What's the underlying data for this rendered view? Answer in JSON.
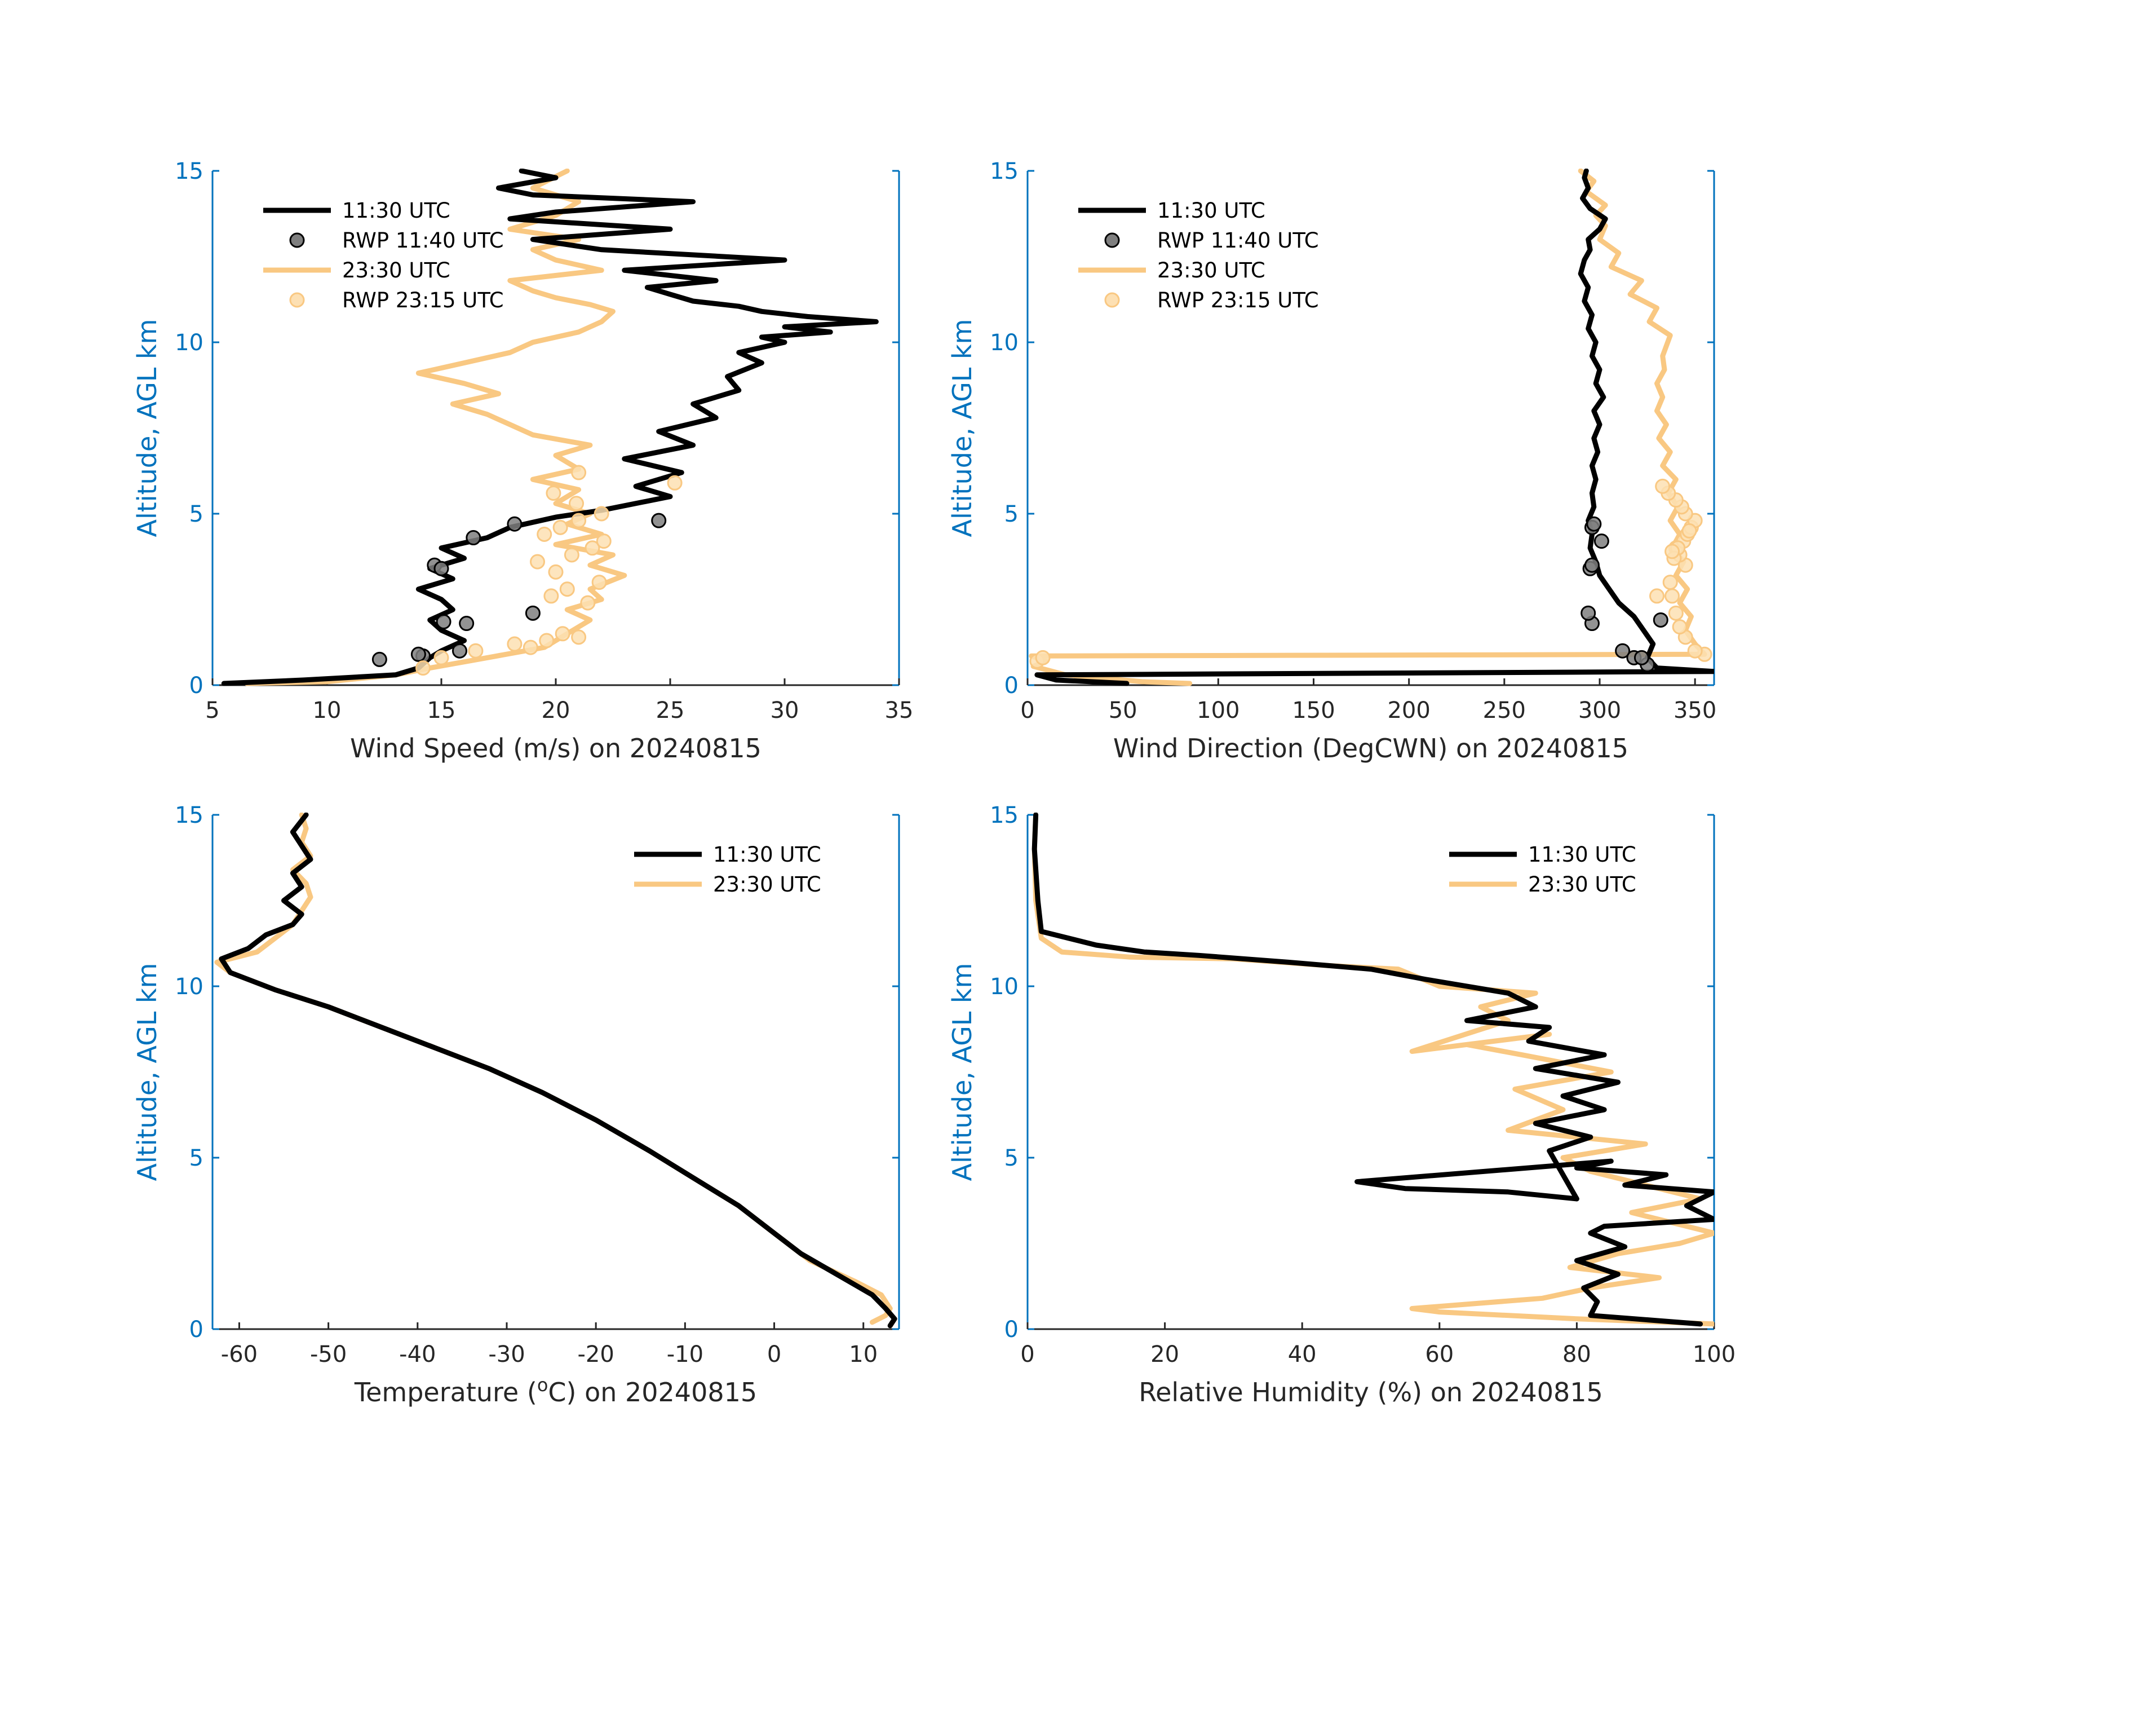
{
  "colors": {
    "series_1130": "#000000",
    "series_2330": "#f9c882",
    "rwp_1140_fill": "#7f7f7f",
    "rwp_2315_fill": "#fde0b3",
    "axis_blue": "#0072bd",
    "axis_text": "#262626"
  },
  "chart_data": [
    {
      "id": "wind-speed",
      "type": "line",
      "title": "",
      "xlabel": "Wind Speed (m/s) on 20240815",
      "ylabel": "Altitude, AGL km",
      "xlim": [
        5,
        35
      ],
      "ylim": [
        0,
        15
      ],
      "xticks": [
        5,
        10,
        15,
        20,
        25,
        30,
        35
      ],
      "xtick_labels": [
        "5",
        "10",
        "15",
        "20",
        "25",
        "30",
        "35"
      ],
      "yticks": [
        0,
        5,
        10,
        15
      ],
      "ytick_labels": [
        "0",
        "5",
        "10",
        "15"
      ],
      "legend": [
        "11:30 UTC",
        "RWP 11:40 UTC",
        "23:30 UTC",
        "RWP 23:15 UTC"
      ],
      "legend_position": "top-left",
      "series": [
        {
          "name": "11:30 UTC",
          "kind": "line",
          "color": "#000000",
          "x": [
            5.5,
            9,
            13,
            14,
            14.5,
            15,
            16,
            15,
            14.5,
            15.5,
            15,
            14,
            15.5,
            14.5,
            16,
            15,
            17,
            18,
            20,
            22,
            25,
            23.5,
            25.5,
            23,
            26,
            24.5,
            27,
            26,
            28,
            27.5,
            29,
            28,
            30,
            29,
            32,
            30,
            34,
            31,
            29,
            28,
            26,
            25,
            24,
            27,
            23,
            30,
            22,
            19,
            25,
            18,
            20,
            26,
            19,
            17.5,
            20,
            18.5
          ],
          "y": [
            0.05,
            0.15,
            0.3,
            0.5,
            0.8,
            1.0,
            1.3,
            1.6,
            1.9,
            2.2,
            2.5,
            2.8,
            3.1,
            3.4,
            3.7,
            4.0,
            4.3,
            4.6,
            4.9,
            5.1,
            5.5,
            5.8,
            6.2,
            6.6,
            7.0,
            7.4,
            7.8,
            8.2,
            8.6,
            9.0,
            9.4,
            9.7,
            10.0,
            10.15,
            10.3,
            10.45,
            10.6,
            10.75,
            10.9,
            11.05,
            11.2,
            11.4,
            11.6,
            11.8,
            12.1,
            12.4,
            12.7,
            13.0,
            13.3,
            13.6,
            13.8,
            14.1,
            14.3,
            14.5,
            14.8,
            15.0
          ]
        },
        {
          "name": "RWP 11:40 UTC",
          "kind": "scatter",
          "color": "#7f7f7f",
          "x": [
            12.3,
            14.2,
            15.8,
            16.1,
            14.7,
            15.0,
            15.1,
            16.4,
            18.2,
            19.0,
            24.5,
            14.0
          ],
          "y": [
            0.75,
            0.85,
            1.0,
            1.8,
            3.5,
            3.4,
            1.85,
            4.3,
            4.7,
            2.1,
            4.8,
            0.9
          ]
        },
        {
          "name": "23:30 UTC",
          "kind": "line",
          "color": "#f9c882",
          "x": [
            6.5,
            10,
            13,
            14.5,
            17,
            19.5,
            20.5,
            21.5,
            20.5,
            22,
            21.5,
            23,
            21.5,
            22.5,
            20,
            22,
            20.5,
            21.5,
            20,
            21,
            19,
            21,
            20,
            21.5,
            19,
            18,
            17,
            15.5,
            17.5,
            16,
            14,
            16,
            18,
            19,
            21,
            22,
            22.5,
            21.5,
            20,
            19,
            18,
            22,
            20,
            19,
            21,
            18,
            20,
            21,
            19,
            20.5
          ],
          "y": [
            0.05,
            0.1,
            0.3,
            0.5,
            0.8,
            1.1,
            1.5,
            1.9,
            2.2,
            2.5,
            2.8,
            3.2,
            3.5,
            3.8,
            4.1,
            4.4,
            4.7,
            5.0,
            5.3,
            5.7,
            6.0,
            6.3,
            6.7,
            7.0,
            7.3,
            7.6,
            7.9,
            8.2,
            8.5,
            8.8,
            9.1,
            9.4,
            9.7,
            10.0,
            10.3,
            10.6,
            10.9,
            11.1,
            11.3,
            11.5,
            11.8,
            12.1,
            12.4,
            12.7,
            13.0,
            13.3,
            13.7,
            14.1,
            14.5,
            15.0
          ]
        },
        {
          "name": "RWP 23:15 UTC",
          "kind": "scatter",
          "color": "#fde0b3",
          "x": [
            14.2,
            15.0,
            16.5,
            18.2,
            18.9,
            19.6,
            20.3,
            21.0,
            19.8,
            20.5,
            21.4,
            21.9,
            20.0,
            19.2,
            20.7,
            21.6,
            22.1,
            19.5,
            20.2,
            21.0,
            22.0,
            20.9,
            19.9,
            25.2,
            21.0
          ],
          "y": [
            0.5,
            0.8,
            1.0,
            1.2,
            1.1,
            1.3,
            1.5,
            1.4,
            2.6,
            2.8,
            2.4,
            3.0,
            3.3,
            3.6,
            3.8,
            4.0,
            4.2,
            4.4,
            4.6,
            4.8,
            5.0,
            5.3,
            5.6,
            5.9,
            6.2
          ]
        }
      ]
    },
    {
      "id": "wind-direction",
      "type": "line",
      "title": "",
      "xlabel": "Wind Direction (DegCWN) on 20240815",
      "ylabel": "Altitude, AGL km",
      "xlim": [
        0,
        360
      ],
      "ylim": [
        0,
        15
      ],
      "xticks": [
        0,
        50,
        100,
        150,
        200,
        250,
        300,
        350
      ],
      "xtick_labels": [
        "0",
        "50",
        "100",
        "150",
        "200",
        "250",
        "300",
        "350"
      ],
      "yticks": [
        0,
        5,
        10,
        15
      ],
      "ytick_labels": [
        "0",
        "5",
        "10",
        "15"
      ],
      "legend": [
        "11:30 UTC",
        "RWP 11:40 UTC",
        "23:30 UTC",
        "RWP 23:15 UTC"
      ],
      "legend_position": "top-left",
      "series": [
        {
          "name": "11:30 UTC",
          "kind": "line",
          "color": "#000000",
          "x": [
            52,
            15,
            5,
            360,
            330,
            325,
            328,
            323,
            318,
            310,
            305,
            300,
            298,
            295,
            296,
            294,
            297,
            296,
            298,
            296,
            299,
            297,
            300,
            297,
            302,
            298,
            300,
            296,
            298,
            294,
            296,
            292,
            294,
            290,
            292,
            295,
            294,
            300,
            303,
            295,
            291,
            294,
            292,
            293
          ],
          "y": [
            0.05,
            0.15,
            0.3,
            0.4,
            0.5,
            0.8,
            1.2,
            1.6,
            2.0,
            2.4,
            2.8,
            3.2,
            3.6,
            4.0,
            4.4,
            4.8,
            5.2,
            5.6,
            6.0,
            6.4,
            6.8,
            7.2,
            7.6,
            8.0,
            8.4,
            8.8,
            9.2,
            9.6,
            10.0,
            10.4,
            10.8,
            11.2,
            11.6,
            12.0,
            12.4,
            12.7,
            13.0,
            13.3,
            13.6,
            13.9,
            14.2,
            14.5,
            14.8,
            15.0
          ]
        },
        {
          "name": "RWP 11:40 UTC",
          "kind": "scatter",
          "color": "#7f7f7f",
          "x": [
            312,
            318,
            325,
            322,
            332,
            296,
            294,
            295,
            296,
            301,
            296,
            297
          ],
          "y": [
            1.0,
            0.8,
            0.6,
            0.8,
            1.9,
            1.8,
            2.1,
            3.4,
            3.5,
            4.2,
            4.6,
            4.7
          ]
        },
        {
          "name": "23:30 UTC",
          "kind": "line",
          "color": "#f9c882",
          "x": [
            85,
            60,
            20,
            3,
            10,
            2,
            355,
            350,
            345,
            348,
            342,
            346,
            340,
            344,
            338,
            342,
            337,
            341,
            336,
            340,
            333,
            337,
            331,
            335,
            330,
            333,
            330,
            334,
            333,
            337,
            326,
            330,
            316,
            322,
            306,
            310,
            300,
            303,
            298,
            303,
            293,
            297,
            290
          ],
          "y": [
            0.05,
            0.1,
            0.3,
            0.55,
            0.7,
            0.85,
            0.9,
            1.2,
            1.6,
            2.0,
            2.4,
            2.8,
            3.2,
            3.6,
            4.0,
            4.4,
            4.8,
            5.2,
            5.6,
            6.0,
            6.4,
            6.8,
            7.2,
            7.6,
            8.0,
            8.4,
            8.8,
            9.2,
            9.6,
            10.2,
            10.6,
            11.0,
            11.4,
            11.8,
            12.2,
            12.6,
            13.0,
            13.4,
            13.7,
            14.0,
            14.4,
            14.7,
            15.0
          ]
        },
        {
          "name": "RWP 23:15 UTC",
          "kind": "scatter",
          "color": "#fde0b3",
          "x": [
            355,
            350,
            345,
            342,
            340,
            338,
            337,
            345,
            342,
            340,
            344,
            346,
            348,
            350,
            345,
            343,
            340,
            336,
            333,
            330,
            347,
            341,
            339,
            338,
            5,
            8
          ],
          "y": [
            0.9,
            1.0,
            1.4,
            1.7,
            2.1,
            2.6,
            3.0,
            3.5,
            3.8,
            4.0,
            4.2,
            4.4,
            4.6,
            4.8,
            5.0,
            5.2,
            5.4,
            5.6,
            5.8,
            2.6,
            4.5,
            4.0,
            3.7,
            3.9,
            0.7,
            0.8
          ]
        }
      ]
    },
    {
      "id": "temperature",
      "type": "line",
      "title": "",
      "xlabel": "Temperature (",
      "xlabel_sup": "o",
      "xlabel_tail": "C) on 20240815",
      "ylabel": "Altitude, AGL km",
      "xlim": [
        -63,
        14
      ],
      "ylim": [
        0,
        15
      ],
      "xticks": [
        -60,
        -50,
        -40,
        -30,
        -20,
        -10,
        0,
        10
      ],
      "xtick_labels": [
        "-60",
        "-50",
        "-40",
        "-30",
        "-20",
        "-10",
        "0",
        "10"
      ],
      "yticks": [
        0,
        5,
        10,
        15
      ],
      "ytick_labels": [
        "0",
        "5",
        "10",
        "15"
      ],
      "legend": [
        "11:30 UTC",
        "23:30 UTC"
      ],
      "legend_position": "top-right",
      "series": [
        {
          "name": "11:30 UTC",
          "kind": "line",
          "color": "#000000",
          "x": [
            13,
            13.5,
            12.5,
            11,
            7,
            3,
            0,
            -4,
            -9,
            -14,
            -20,
            -26,
            -32,
            -38,
            -44,
            -50,
            -56,
            -61,
            -62,
            -59,
            -57,
            -54,
            -53,
            -55,
            -53,
            -54,
            -52,
            -53,
            -54,
            -52.5
          ],
          "y": [
            0.1,
            0.3,
            0.6,
            1.0,
            1.6,
            2.2,
            2.8,
            3.6,
            4.4,
            5.2,
            6.1,
            6.9,
            7.6,
            8.2,
            8.8,
            9.4,
            9.9,
            10.4,
            10.8,
            11.1,
            11.5,
            11.8,
            12.1,
            12.5,
            12.9,
            13.3,
            13.7,
            14.1,
            14.5,
            15.0
          ]
        },
        {
          "name": "23:30 UTC",
          "kind": "line",
          "color": "#f9c882",
          "x": [
            11,
            12.5,
            13,
            12,
            9,
            4,
            0,
            -4,
            -9,
            -14,
            -20,
            -26,
            -32,
            -38,
            -44,
            -50,
            -56,
            -61,
            -62.5,
            -58,
            -56,
            -54,
            -53,
            -52,
            -52.5,
            -54,
            -52,
            -53,
            -52.5,
            -53
          ],
          "y": [
            0.2,
            0.4,
            0.6,
            1.0,
            1.4,
            2.0,
            2.8,
            3.6,
            4.4,
            5.2,
            6.1,
            6.9,
            7.6,
            8.2,
            8.8,
            9.4,
            9.9,
            10.4,
            10.7,
            11.0,
            11.4,
            11.8,
            12.2,
            12.6,
            13.0,
            13.4,
            13.8,
            14.2,
            14.6,
            15.0
          ]
        }
      ]
    },
    {
      "id": "relative-humidity",
      "type": "line",
      "title": "",
      "xlabel": "Relative Humidity (%) on 20240815",
      "ylabel": "Altitude, AGL km",
      "xlim": [
        0,
        100
      ],
      "ylim": [
        0,
        15
      ],
      "xticks": [
        0,
        20,
        40,
        60,
        80,
        100
      ],
      "xtick_labels": [
        "0",
        "20",
        "40",
        "60",
        "80",
        "100"
      ],
      "yticks": [
        0,
        5,
        10,
        15
      ],
      "ytick_labels": [
        "0",
        "5",
        "10",
        "15"
      ],
      "legend": [
        "11:30 UTC",
        "23:30 UTC"
      ],
      "legend_position": "top-right",
      "series": [
        {
          "name": "11:30 UTC",
          "kind": "line",
          "color": "#000000",
          "x": [
            98,
            82,
            83,
            81,
            86,
            80,
            87,
            82,
            84,
            100,
            96,
            100,
            87,
            93,
            80,
            85,
            48,
            55,
            70,
            80,
            76,
            82,
            74,
            84,
            78,
            86,
            74,
            84,
            73,
            76,
            64,
            74,
            70,
            58,
            50,
            38,
            25,
            17,
            10,
            2,
            1.5,
            1,
            1.2
          ],
          "y": [
            0.15,
            0.4,
            0.8,
            1.2,
            1.6,
            2.0,
            2.4,
            2.8,
            3.0,
            3.2,
            3.6,
            4.0,
            4.2,
            4.5,
            4.7,
            4.9,
            4.3,
            4.1,
            4.0,
            3.8,
            5.2,
            5.6,
            6.0,
            6.4,
            6.8,
            7.2,
            7.6,
            8.0,
            8.4,
            8.8,
            9.0,
            9.4,
            9.8,
            10.2,
            10.5,
            10.7,
            10.9,
            11.0,
            11.2,
            11.6,
            12.5,
            14.0,
            15.0
          ]
        },
        {
          "name": "23:30 UTC",
          "kind": "line",
          "color": "#f9c882",
          "x": [
            100,
            80,
            60,
            56,
            75,
            82,
            92,
            79,
            86,
            95,
            100,
            96,
            88,
            98,
            90,
            82,
            78,
            90,
            70,
            78,
            71,
            85,
            72,
            64,
            76,
            56,
            70,
            66,
            74,
            60,
            54,
            44,
            30,
            15,
            5,
            2,
            1.2,
            1,
            1.2
          ],
          "y": [
            0.15,
            0.3,
            0.5,
            0.6,
            0.9,
            1.2,
            1.5,
            1.8,
            2.2,
            2.5,
            2.8,
            3.0,
            3.4,
            3.8,
            4.2,
            4.6,
            5.0,
            5.4,
            5.8,
            6.4,
            7.0,
            7.5,
            8.0,
            8.3,
            8.6,
            8.1,
            9.0,
            9.4,
            9.8,
            10.0,
            10.5,
            10.6,
            10.8,
            10.85,
            11.0,
            11.4,
            12.5,
            14.0,
            15.0
          ]
        }
      ]
    }
  ]
}
